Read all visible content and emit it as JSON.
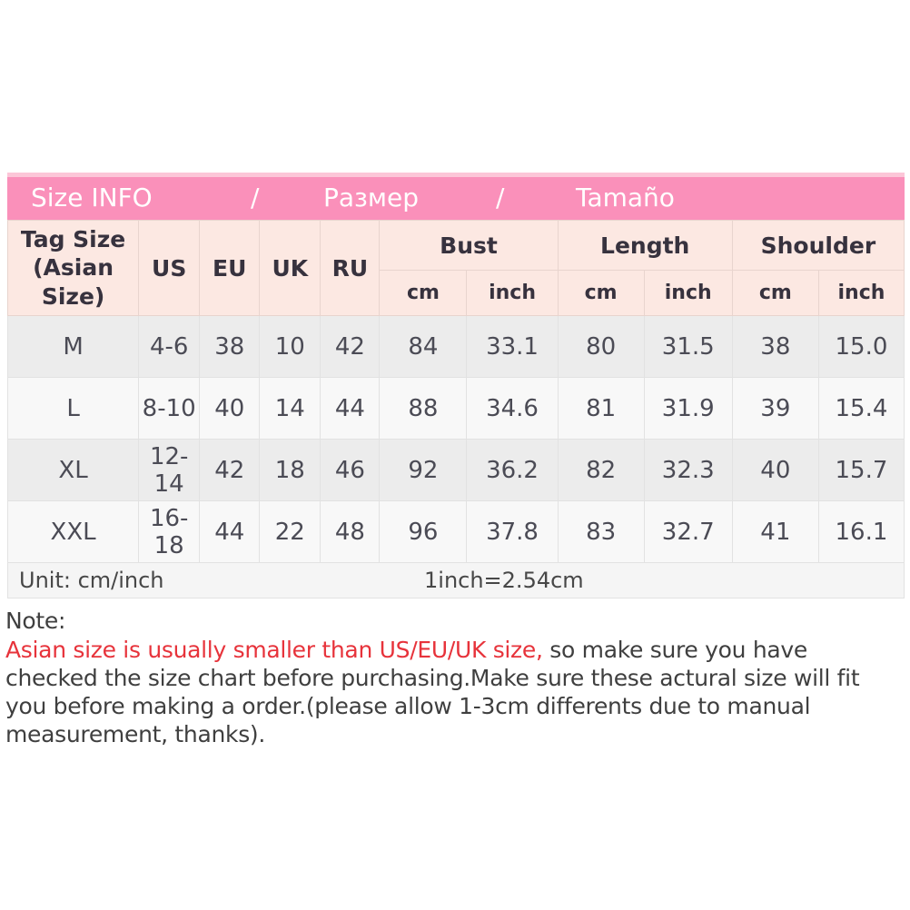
{
  "banner": {
    "size_info": "Size INFO",
    "slash1": "/",
    "razmer": "Размер",
    "slash2": "/",
    "tamano": "Tamaño"
  },
  "table": {
    "tag_size_line1": "Tag Size",
    "tag_size_line2": "(Asian Size)",
    "size_system_headers": [
      "US",
      "EU",
      "UK",
      "RU"
    ],
    "measurement_headers": [
      "Bust",
      "Length",
      "Shoulder"
    ],
    "unit_headers": [
      "cm",
      "inch",
      "cm",
      "inch",
      "cm",
      "inch"
    ],
    "rows": [
      {
        "cells": [
          "M",
          "4-6",
          "38",
          "10",
          "42",
          "84",
          "33.1",
          "80",
          "31.5",
          "38",
          "15.0"
        ]
      },
      {
        "cells": [
          "L",
          "8-10",
          "40",
          "14",
          "44",
          "88",
          "34.6",
          "81",
          "31.9",
          "39",
          "15.4"
        ]
      },
      {
        "cells": [
          "XL",
          "12-14",
          "42",
          "18",
          "46",
          "92",
          "36.2",
          "82",
          "32.3",
          "40",
          "15.7"
        ]
      },
      {
        "cells": [
          "XXL",
          "16-18",
          "44",
          "22",
          "48",
          "96",
          "37.8",
          "83",
          "32.7",
          "41",
          "16.1"
        ]
      }
    ],
    "unit_note": "Unit: cm/inch",
    "conversion": "1inch=2.54cm"
  },
  "note": {
    "title": "Note:",
    "highlight": "Asian size is usually smaller than US/EU/UK size,",
    "body": " so make sure you have checked the size chart before purchasing.Make sure these actural size will fit you before making a order.(please allow 1-3cm differents due to manual measurement, thanks)."
  },
  "colors": {
    "banner_pink": "#fa90ba",
    "banner_strip": "#fcc6d8",
    "header_cell_pink": "#fce8e2",
    "row_gray": "#ececec",
    "row_light": "#f8f8f8",
    "highlight_red": "#e7333b"
  }
}
